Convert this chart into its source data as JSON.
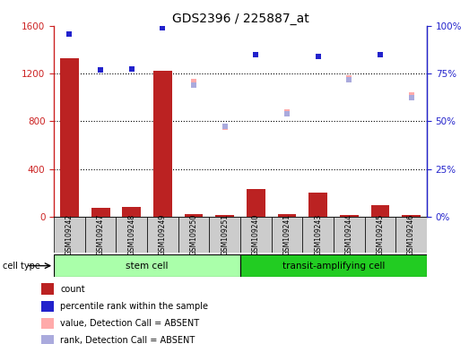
{
  "title": "GDS2396 / 225887_at",
  "samples": [
    "GSM109242",
    "GSM109247",
    "GSM109248",
    "GSM109249",
    "GSM109250",
    "GSM109251",
    "GSM109240",
    "GSM109241",
    "GSM109243",
    "GSM109244",
    "GSM109245",
    "GSM109246"
  ],
  "count_values": [
    1330,
    75,
    80,
    1225,
    20,
    15,
    230,
    20,
    200,
    12,
    100,
    15
  ],
  "percentile_rank": [
    1530,
    1230,
    1235,
    1580,
    null,
    null,
    1360,
    null,
    1345,
    null,
    1360,
    null
  ],
  "value_absent": [
    null,
    null,
    null,
    null,
    1130,
    750,
    null,
    880,
    null,
    1160,
    null,
    1020
  ],
  "rank_absent": [
    null,
    null,
    null,
    null,
    1100,
    760,
    null,
    860,
    null,
    1150,
    null,
    1000
  ],
  "ylim_left": [
    0,
    1600
  ],
  "ylim_right": [
    0,
    100
  ],
  "yticks_left": [
    0,
    400,
    800,
    1200,
    1600
  ],
  "ytick_labels_left": [
    "0",
    "400",
    "800",
    "1200",
    "1600"
  ],
  "yticks_right_vals": [
    0,
    25,
    50,
    75,
    100
  ],
  "ytick_labels_right": [
    "0%",
    "25%",
    "50%",
    "75%",
    "100%"
  ],
  "group1_label": "stem cell",
  "group2_label": "transit-amplifying cell",
  "group1_indices": [
    0,
    1,
    2,
    3,
    4,
    5
  ],
  "group2_indices": [
    6,
    7,
    8,
    9,
    10,
    11
  ],
  "bar_color": "#bb2222",
  "dot_color": "#2222cc",
  "absent_value_color": "#ffaaaa",
  "absent_rank_color": "#aaaadd",
  "group1_bg": "#aaffaa",
  "group2_bg": "#22cc22",
  "cell_bg": "#cccccc",
  "legend_items": [
    "count",
    "percentile rank within the sample",
    "value, Detection Call = ABSENT",
    "rank, Detection Call = ABSENT"
  ],
  "legend_colors": [
    "#bb2222",
    "#2222cc",
    "#ffaaaa",
    "#aaaadd"
  ]
}
